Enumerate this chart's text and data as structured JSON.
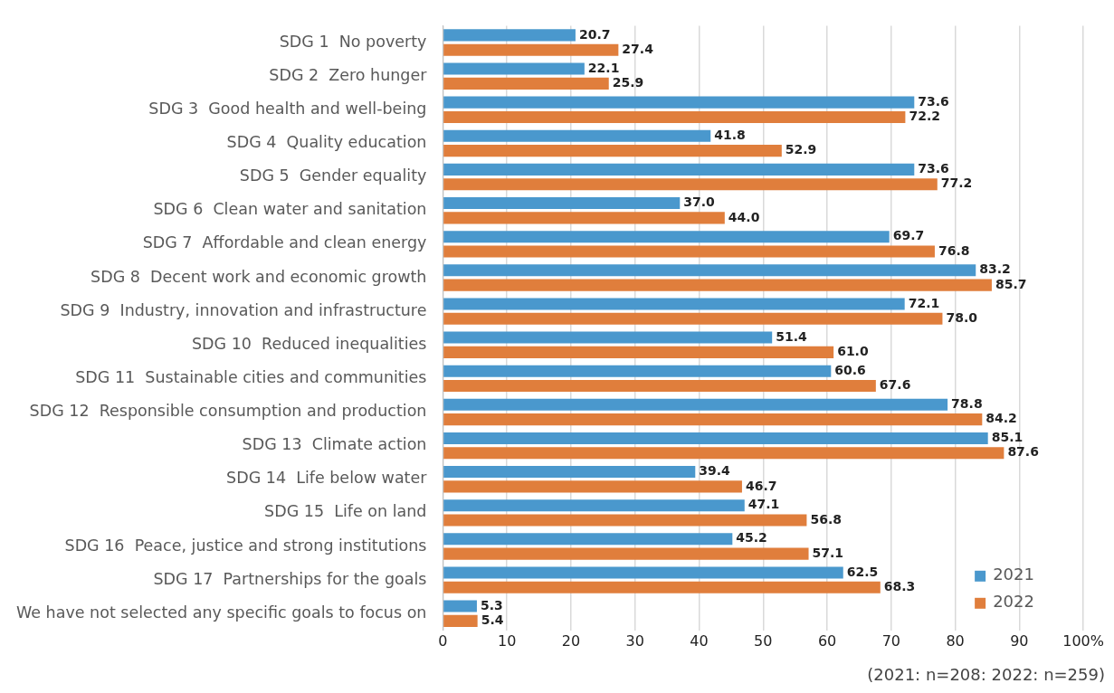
{
  "chart_data": {
    "type": "bar",
    "orientation": "horizontal",
    "categories": [
      "SDG 1  No poverty",
      "SDG 2  Zero hunger",
      "SDG 3  Good health and well-being",
      "SDG 4  Quality education",
      "SDG 5  Gender equality",
      "SDG 6  Clean water and sanitation",
      "SDG 7  Affordable and clean energy",
      "SDG 8  Decent work and economic growth",
      "SDG 9  Industry, innovation and infrastructure",
      "SDG 10  Reduced inequalities",
      "SDG 11  Sustainable cities and communities",
      "SDG 12  Responsible consumption and production",
      "SDG 13  Climate action",
      "SDG 14  Life below water",
      "SDG 15  Life on land",
      "SDG 16  Peace, justice and strong institutions",
      "SDG 17  Partnerships for the goals",
      "We have not selected any specific goals to focus on"
    ],
    "series": [
      {
        "name": "2021",
        "color": "#4a98cd",
        "values": [
          20.7,
          22.1,
          73.6,
          41.8,
          73.6,
          37.0,
          69.7,
          83.2,
          72.1,
          51.4,
          60.6,
          78.8,
          85.1,
          39.4,
          47.1,
          45.2,
          62.5,
          5.3
        ],
        "value_labels": [
          "20.7",
          "22.1",
          "73.6",
          "41.8",
          "73.6",
          "37.0",
          "69.7",
          "83.2",
          "72.1",
          "51.4",
          "60.6",
          "78.8",
          "85.1",
          "39.4",
          "47.1",
          "45.2",
          "62.5",
          "5.3"
        ]
      },
      {
        "name": "2022",
        "color": "#e07e3c",
        "values": [
          27.4,
          25.9,
          72.2,
          52.9,
          77.2,
          44.0,
          76.8,
          85.7,
          78.0,
          61.0,
          67.6,
          84.2,
          87.6,
          46.7,
          56.8,
          57.1,
          68.3,
          5.4
        ],
        "value_labels": [
          "27.4",
          "25.9",
          "72.2",
          "52.9",
          "77.2",
          "44.0",
          "76.8",
          "85.7",
          "78.0",
          "61.0",
          "67.6",
          "84.2",
          "87.6",
          "46.7",
          "56.8",
          "57.1",
          "68.3",
          "5.4"
        ]
      }
    ],
    "xlim": [
      0,
      100
    ],
    "xticks": [
      0,
      10,
      20,
      30,
      40,
      50,
      60,
      70,
      80,
      90,
      {
        "value": 100,
        "label": "100%"
      }
    ],
    "grid": "x",
    "legend": "bottom right",
    "annotations": [
      "(2021: n=208: 2022: n=259)"
    ]
  }
}
